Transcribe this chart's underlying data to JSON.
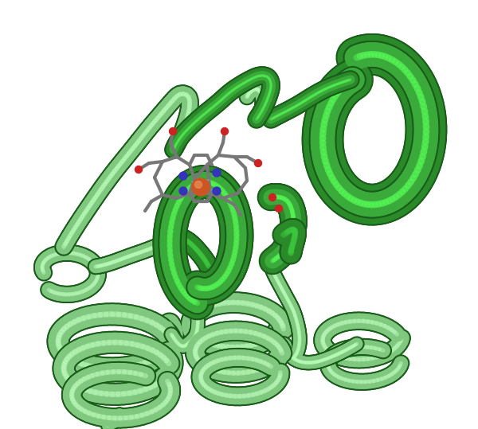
{
  "background_color": "#ffffff",
  "figure_width": 6.0,
  "figure_height": 5.39,
  "dpi": 100,
  "protein_colors": {
    "dark_helix": "#2a8a2a",
    "light_helix": "#80c880",
    "dark_edge": "#1a5c1a",
    "medium_green": "#3aaa3a",
    "highlight": "#a0e0a0",
    "shadow": "#1a6a1a"
  },
  "heme_colors": {
    "carbon": "#888888",
    "nitrogen": "#3333bb",
    "iron": "#cc5522",
    "oxygen": "#cc2222",
    "bond": "#777777",
    "coord_bond": "#9999cc"
  },
  "image_path": null
}
